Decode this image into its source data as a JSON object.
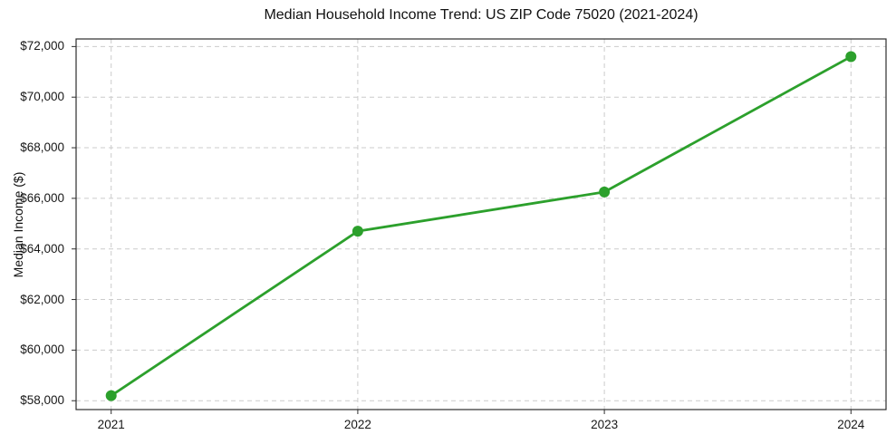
{
  "figure": {
    "background": "#ffffff"
  },
  "chart_data": {
    "type": "line",
    "title": "Median Household Income Trend: US ZIP Code 75020 (2021-2024)",
    "xlabel": "",
    "ylabel": "Median Income ($)",
    "x_categories": [
      "2021",
      "2022",
      "2023",
      "2024"
    ],
    "values": [
      58200,
      64700,
      66250,
      71600
    ],
    "y_ticks": [
      58000,
      60000,
      62000,
      64000,
      66000,
      68000,
      70000,
      72000
    ],
    "y_tick_labels": [
      "$58,000",
      "$60,000",
      "$62,000",
      "$64,000",
      "$66,000",
      "$68,000",
      "$70,000",
      "$72,000"
    ],
    "ylim": [
      57650,
      72300
    ],
    "grid": true,
    "grid_style": "dashed",
    "legend": "none",
    "colors": {
      "line": "#2ca02c",
      "marker": "#2ca02c",
      "grid": "#cccccc",
      "spine": "#2d2d2d",
      "text": "#181818"
    }
  }
}
